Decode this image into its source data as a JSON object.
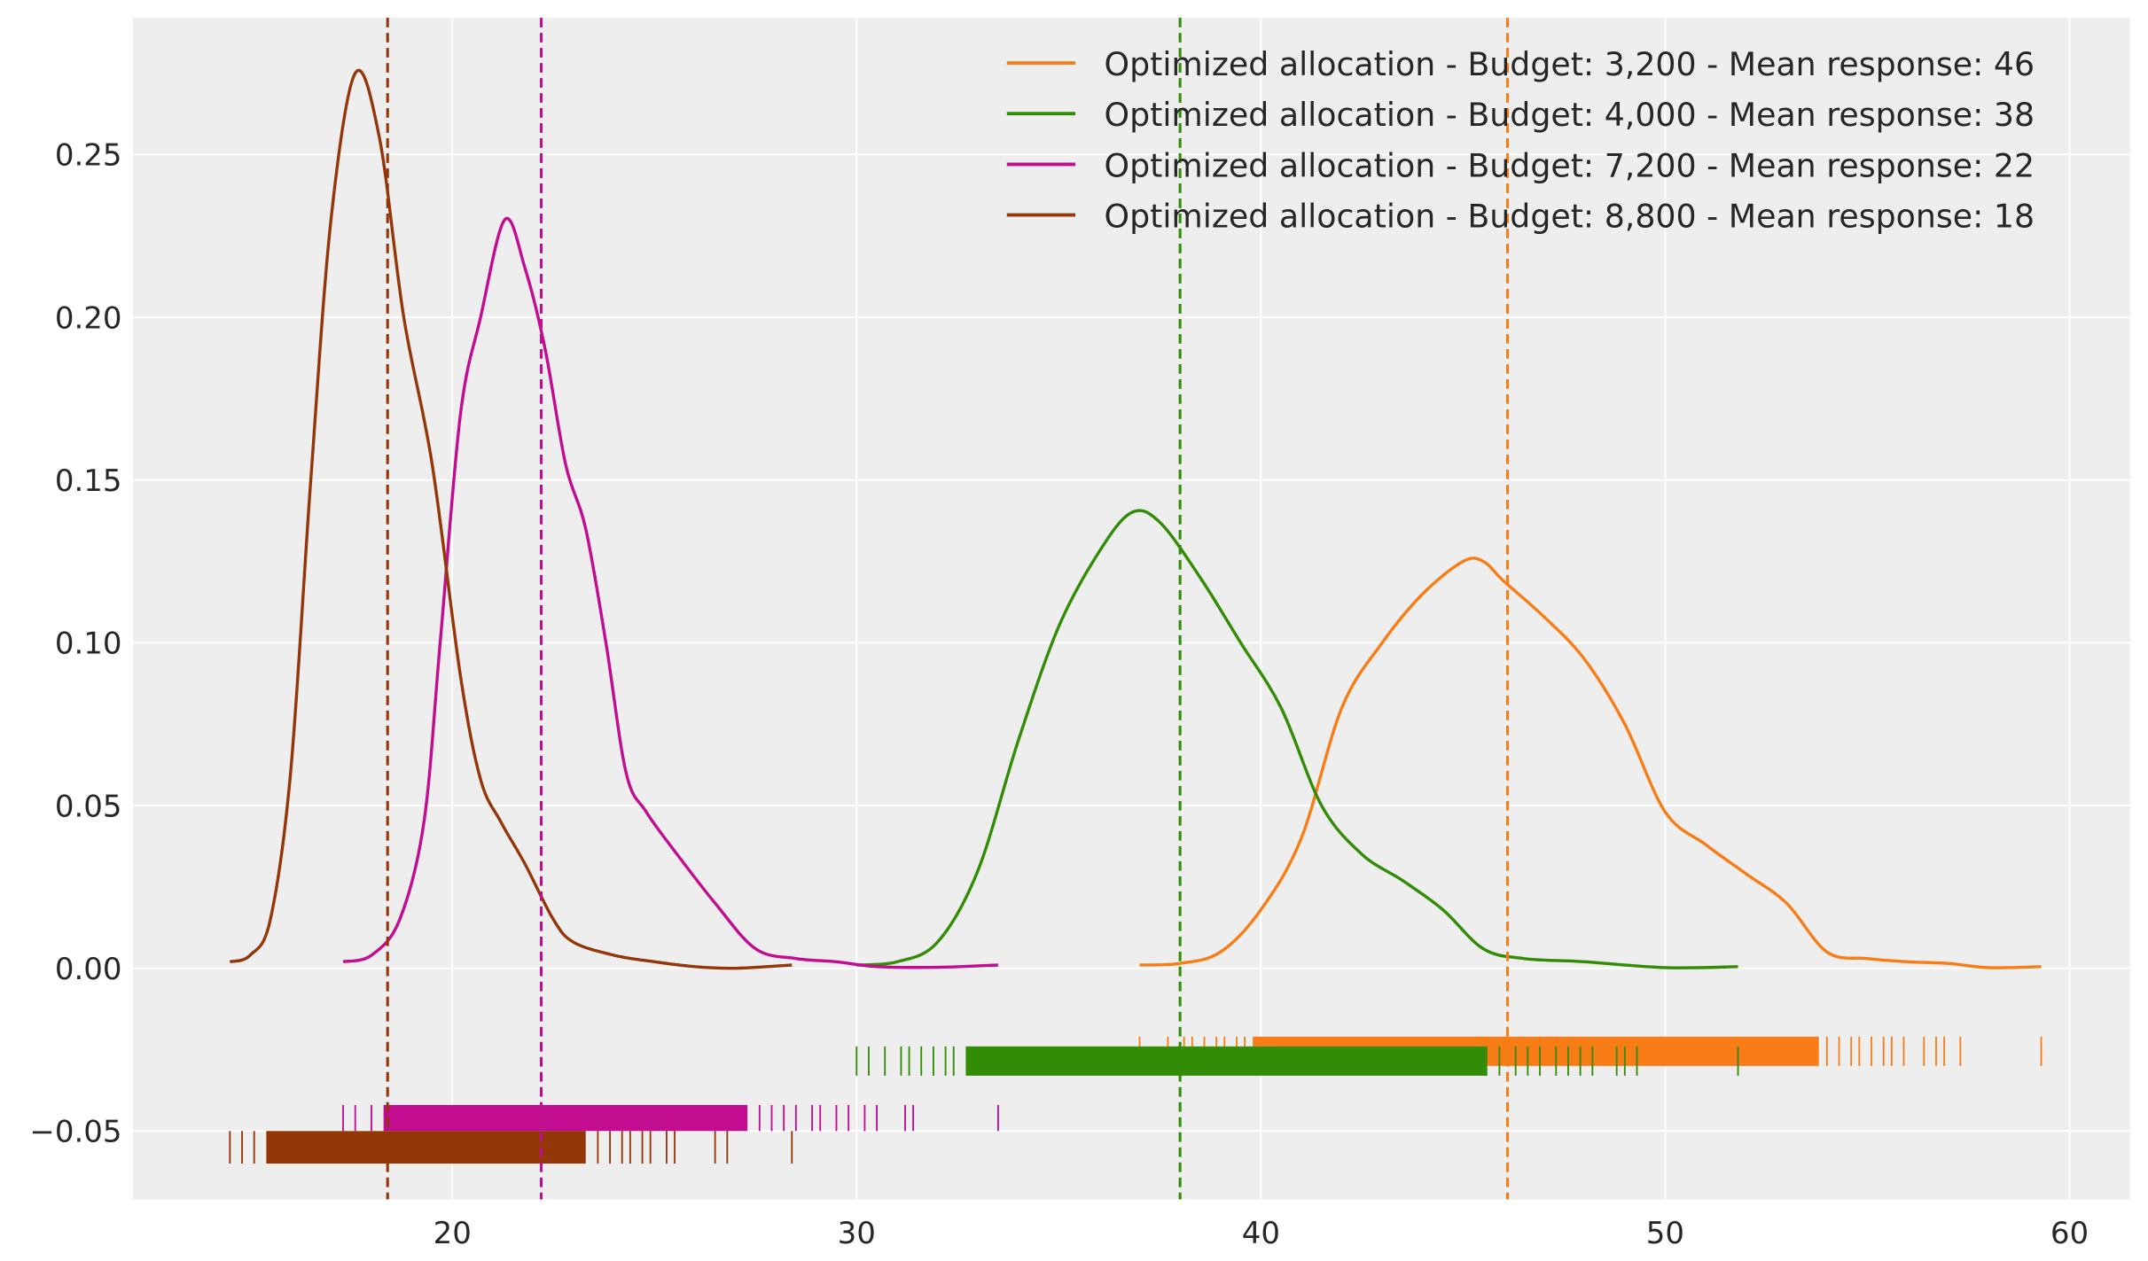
{
  "chart_data": {
    "type": "line",
    "title": "",
    "xlabel": "",
    "ylabel": "",
    "xlim": [
      12.1,
      61.5
    ],
    "ylim": [
      -0.071,
      0.292
    ],
    "grid": true,
    "legend_position": "top-right",
    "x_ticks": [
      20,
      30,
      40,
      50,
      60
    ],
    "y_ticks": [
      -0.05,
      0.0,
      0.05,
      0.1,
      0.15,
      0.2,
      0.25
    ],
    "x_tick_labels": [
      "20",
      "30",
      "40",
      "50",
      "60"
    ],
    "y_tick_labels": [
      "−0.05",
      "0.00",
      "0.05",
      "0.10",
      "0.15",
      "0.20",
      "0.25"
    ],
    "series": [
      {
        "name": "Optimized allocation - Budget: 3,200 - Mean response: 46",
        "color": "#f97d16",
        "mean": 46.1,
        "rug_y": [
          -0.03,
          -0.021
        ],
        "rug_dense": [
          39.8,
          53.8
        ],
        "rug_ticks": [
          37.0,
          37.7,
          38.1,
          38.3,
          38.6,
          38.9,
          39.1,
          39.4,
          39.6,
          54.0,
          54.3,
          54.6,
          54.8,
          55.1,
          55.4,
          55.6,
          55.9,
          56.4,
          56.7,
          56.9,
          57.3,
          59.3
        ],
        "points": [
          [
            37,
            0.001
          ],
          [
            38,
            0.0015
          ],
          [
            39,
            0.005
          ],
          [
            40,
            0.018
          ],
          [
            41,
            0.04
          ],
          [
            42,
            0.08
          ],
          [
            43,
            0.1
          ],
          [
            44,
            0.115
          ],
          [
            45,
            0.125
          ],
          [
            45.5,
            0.125
          ],
          [
            46,
            0.119
          ],
          [
            47,
            0.108
          ],
          [
            48,
            0.095
          ],
          [
            49,
            0.075
          ],
          [
            50,
            0.048
          ],
          [
            51,
            0.038
          ],
          [
            52,
            0.029
          ],
          [
            53,
            0.02
          ],
          [
            54,
            0.005
          ],
          [
            55,
            0.003
          ],
          [
            56,
            0.002
          ],
          [
            57,
            0.0015
          ],
          [
            58,
            0.0002
          ],
          [
            59.3,
            0.0005
          ]
        ]
      },
      {
        "name": "Optimized allocation - Budget: 4,000 - Mean response: 38",
        "color": "#328c06",
        "mean": 38.0,
        "rug_y": [
          -0.033,
          -0.024
        ],
        "rug_dense": [
          32.7,
          45.6
        ],
        "rug_ticks": [
          30.0,
          30.3,
          30.7,
          31.1,
          31.3,
          31.6,
          31.9,
          32.2,
          32.4,
          45.9,
          46.3,
          46.6,
          46.9,
          47.3,
          47.6,
          47.9,
          48.2,
          48.8,
          49.0,
          49.3,
          51.8
        ],
        "points": [
          [
            30,
            0.001
          ],
          [
            31,
            0.002
          ],
          [
            32,
            0.008
          ],
          [
            33,
            0.03
          ],
          [
            34,
            0.07
          ],
          [
            35,
            0.105
          ],
          [
            36,
            0.128
          ],
          [
            36.8,
            0.14
          ],
          [
            37.5,
            0.137
          ],
          [
            38.5,
            0.12
          ],
          [
            39.5,
            0.1
          ],
          [
            40.5,
            0.08
          ],
          [
            41.5,
            0.05
          ],
          [
            42.5,
            0.035
          ],
          [
            43.5,
            0.027
          ],
          [
            44.5,
            0.018
          ],
          [
            45.5,
            0.006
          ],
          [
            46.5,
            0.003
          ],
          [
            48,
            0.002
          ],
          [
            50,
            0.0002
          ],
          [
            51.8,
            0.0005
          ]
        ]
      },
      {
        "name": "Optimized allocation - Budget: 7,200 - Mean response: 22",
        "color": "#c20d90",
        "mean": 22.2,
        "rug_y": [
          -0.05,
          -0.042
        ],
        "rug_dense": [
          18.3,
          27.3
        ],
        "rug_ticks": [
          17.3,
          17.6,
          18.0,
          27.6,
          27.9,
          28.2,
          28.5,
          28.9,
          29.1,
          29.5,
          29.8,
          30.2,
          30.5,
          31.2,
          31.4,
          33.5
        ],
        "points": [
          [
            17.3,
            0.002
          ],
          [
            18,
            0.004
          ],
          [
            18.7,
            0.015
          ],
          [
            19.3,
            0.045
          ],
          [
            19.7,
            0.1
          ],
          [
            20.2,
            0.17
          ],
          [
            20.7,
            0.2
          ],
          [
            21.3,
            0.23
          ],
          [
            21.8,
            0.215
          ],
          [
            22.3,
            0.19
          ],
          [
            22.8,
            0.155
          ],
          [
            23.3,
            0.135
          ],
          [
            23.8,
            0.1
          ],
          [
            24.3,
            0.06
          ],
          [
            24.8,
            0.048
          ],
          [
            25.5,
            0.036
          ],
          [
            26.5,
            0.02
          ],
          [
            27.5,
            0.006
          ],
          [
            28.5,
            0.003
          ],
          [
            29.5,
            0.002
          ],
          [
            30.5,
            0.0005
          ],
          [
            32,
            0.0003
          ],
          [
            33.5,
            0.001
          ]
        ]
      },
      {
        "name": "Optimized allocation - Budget: 8,800 - Mean response: 18",
        "color": "#933708",
        "mean": 18.4,
        "rug_y": [
          -0.06,
          -0.05
        ],
        "rug_dense": [
          15.4,
          23.3
        ],
        "rug_ticks": [
          14.5,
          14.8,
          15.1,
          23.6,
          23.9,
          24.2,
          24.4,
          24.7,
          24.9,
          25.3,
          25.5,
          26.5,
          26.8,
          28.4
        ],
        "points": [
          [
            14.5,
            0.002
          ],
          [
            15,
            0.004
          ],
          [
            15.5,
            0.015
          ],
          [
            16,
            0.06
          ],
          [
            16.5,
            0.15
          ],
          [
            17,
            0.23
          ],
          [
            17.6,
            0.275
          ],
          [
            18.2,
            0.255
          ],
          [
            18.8,
            0.2
          ],
          [
            19.5,
            0.155
          ],
          [
            20.2,
            0.09
          ],
          [
            20.7,
            0.058
          ],
          [
            21.2,
            0.045
          ],
          [
            21.8,
            0.032
          ],
          [
            22.5,
            0.015
          ],
          [
            23,
            0.008
          ],
          [
            24,
            0.004
          ],
          [
            25,
            0.002
          ],
          [
            26,
            0.0005
          ],
          [
            27,
            0
          ],
          [
            28.4,
            0.001
          ]
        ]
      }
    ]
  }
}
